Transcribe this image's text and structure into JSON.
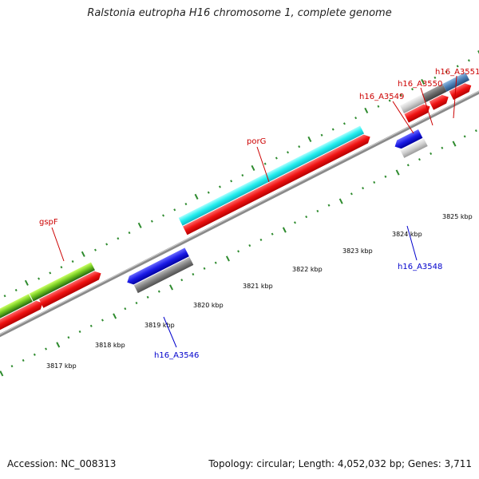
{
  "header": {
    "title": "Ralstonia eutropha H16 chromosome 1, complete genome"
  },
  "footer": {
    "accession": "Accession: NC_008313",
    "stats": "Topology: circular; Length: 4,052,032 bp; Genes: 3,711"
  },
  "colors": {
    "backbone": "#808080",
    "tick": "#2e8b2e",
    "cds_red": "#ee1111",
    "gene_cyan": "#22eeee",
    "gene_green": "#44aa22",
    "gene_blue": "#1a1ae6",
    "gene_gray": "#808080",
    "gene_lightgray": "#c8c8c8",
    "gene_darkgray": "#6a6a6a",
    "gene_steelblue": "#4a7fb5",
    "label_forward": "#cc0000",
    "label_reverse": "#0000cc"
  },
  "scale_labels": [
    "3817 kbp",
    "3818 kbp",
    "3819 kbp",
    "3820 kbp",
    "3821 kbp",
    "3822 kbp",
    "3823 kbp",
    "3824 kbp",
    "3825 kbp"
  ],
  "gene_labels": {
    "gspF": "gspF",
    "porG": "porG",
    "h16_A3549": "h16_A3549",
    "h16_A3550": "h16_A3550",
    "h16_A3551": "h16_A3551",
    "h16_A3548": "h16_A3548",
    "h16_A3546": "h16_A3546"
  }
}
